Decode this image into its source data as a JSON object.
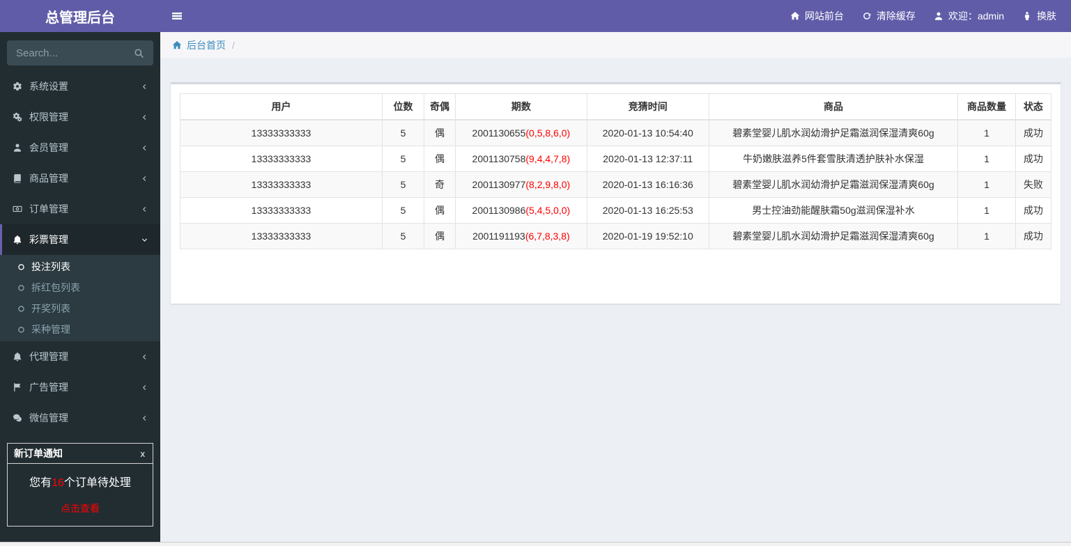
{
  "app": {
    "title": "总管理后台"
  },
  "topbar": {
    "links": [
      {
        "name": "site-front",
        "icon": "home-icon",
        "label": "网站前台"
      },
      {
        "name": "clear-cache",
        "icon": "refresh-icon",
        "label": "清除缓存"
      },
      {
        "name": "welcome-admin",
        "icon": "user-icon",
        "label": "欢迎：admin"
      },
      {
        "name": "change-skin",
        "icon": "person-icon",
        "label": "换肤"
      }
    ]
  },
  "sidebar": {
    "search_placeholder": "Search...",
    "search_icon": "search-icon",
    "menu": [
      {
        "name": "system-settings",
        "icon": "gear-icon",
        "label": "系统设置",
        "state": "collapsed"
      },
      {
        "name": "permission-management",
        "icon": "gears-icon",
        "label": "权限管理",
        "state": "collapsed"
      },
      {
        "name": "member-management",
        "icon": "user-icon",
        "label": "会员管理",
        "state": "collapsed"
      },
      {
        "name": "product-management",
        "icon": "book-icon",
        "label": "商品管理",
        "state": "collapsed"
      },
      {
        "name": "order-management",
        "icon": "money-icon",
        "label": "订单管理",
        "state": "collapsed"
      },
      {
        "name": "lottery-management",
        "icon": "bell-icon",
        "label": "彩票管理",
        "state": "expanded",
        "active": true,
        "children": [
          {
            "name": "bet-list",
            "icon": "circle-o-icon",
            "label": "投注列表",
            "active": true
          },
          {
            "name": "red-packet-list",
            "icon": "circle-o-icon",
            "label": "拆红包列表"
          },
          {
            "name": "draw-list",
            "icon": "circle-o-icon",
            "label": "开奖列表"
          },
          {
            "name": "lottery-type-management",
            "icon": "circle-o-icon",
            "label": "采种管理"
          }
        ]
      },
      {
        "name": "agent-management",
        "icon": "bell-icon",
        "label": "代理管理",
        "state": "collapsed"
      },
      {
        "name": "ad-management",
        "icon": "flag-icon",
        "label": "广告管理",
        "state": "collapsed"
      },
      {
        "name": "wechat-management",
        "icon": "wechat-icon",
        "label": "微信管理",
        "state": "collapsed"
      }
    ],
    "notification": {
      "title": "新订单通知",
      "close": "x",
      "message_prefix": "您有",
      "count": "16",
      "message_suffix": "个订单待处理",
      "action": "点击查看"
    }
  },
  "breadcrumb": {
    "home_icon": "home-icon",
    "home": "后台首页",
    "separator": "/"
  },
  "table": {
    "headers": [
      "用户",
      "位数",
      "奇偶",
      "期数",
      "竞猜时间",
      "商品",
      "商品数量",
      "状态"
    ],
    "col_widths": [
      "23.2%",
      "4.8%",
      "3.6%",
      "15.1%",
      "14.0%",
      "28.6%",
      "6.6%",
      "4.1%"
    ],
    "rows": [
      {
        "user": "13333333333",
        "digits": "5",
        "parity": "偶",
        "issue": "2001130655",
        "issue_numbers": "(0,5,8,6,0)",
        "time": "2020-01-13 10:54:40",
        "product": "碧素堂婴儿肌水润幼滑护足霜滋润保湿清爽60g",
        "qty": "1",
        "status": "成功"
      },
      {
        "user": "13333333333",
        "digits": "5",
        "parity": "偶",
        "issue": "2001130758",
        "issue_numbers": "(9,4,4,7,8)",
        "time": "2020-01-13 12:37:11",
        "product": "牛奶嫩肤滋养5件套雪肤清透护肤补水保湿",
        "qty": "1",
        "status": "成功"
      },
      {
        "user": "13333333333",
        "digits": "5",
        "parity": "奇",
        "issue": "2001130977",
        "issue_numbers": "(8,2,9,8,0)",
        "time": "2020-01-13 16:16:36",
        "product": "碧素堂婴儿肌水润幼滑护足霜滋润保湿清爽60g",
        "qty": "1",
        "status": "失败"
      },
      {
        "user": "13333333333",
        "digits": "5",
        "parity": "偶",
        "issue": "2001130986",
        "issue_numbers": "(5,4,5,0,0)",
        "time": "2020-01-13 16:25:53",
        "product": "男士控油劲能醒肤霜50g滋润保湿补水",
        "qty": "1",
        "status": "成功"
      },
      {
        "user": "13333333333",
        "digits": "5",
        "parity": "偶",
        "issue": "2001191193",
        "issue_numbers": "(6,7,8,3,8)",
        "time": "2020-01-19 19:52:10",
        "product": "碧素堂婴儿肌水润幼滑护足霜滋润保湿清爽60g",
        "qty": "1",
        "status": "成功"
      }
    ]
  },
  "colors": {
    "accent_purple": "#605ca8",
    "sidebar_bg": "#222d32",
    "submenu_bg": "#2c3b41",
    "active_border_purple": "#6a60ab",
    "link_blue": "#3c8dbc",
    "alert_red": "#ff0000",
    "content_bg": "#ecf0f5"
  }
}
